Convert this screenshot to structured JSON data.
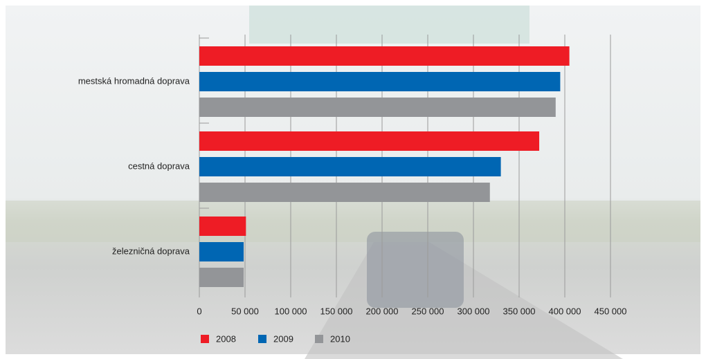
{
  "chart_data": {
    "type": "hbar",
    "categories": [
      "mestská hromadná doprava",
      "cestná doprava",
      "železničná doprava"
    ],
    "series": [
      {
        "name": "2008",
        "color": "#ee1c25",
        "values": [
          405000,
          372000,
          51000
        ]
      },
      {
        "name": "2009",
        "color": "#0066b3",
        "values": [
          395000,
          330000,
          48500
        ]
      },
      {
        "name": "2010",
        "color": "#939598",
        "values": [
          390000,
          318000,
          48500
        ]
      }
    ],
    "xlim": [
      0,
      450000
    ],
    "xticks": [
      0,
      {
        "value": 50000,
        "label": "50 000"
      },
      {
        "value": 100000,
        "label": "100 000"
      },
      {
        "value": 150000,
        "label": "150 000"
      },
      {
        "value": 200000,
        "label": "200 000"
      },
      {
        "value": 250000,
        "label": "250 000"
      },
      {
        "value": 300000,
        "label": "300 000"
      },
      {
        "value": 350000,
        "label": "350 000"
      },
      {
        "value": 400000,
        "label": "400 000"
      },
      {
        "value": 450000,
        "label": "450 000"
      }
    ],
    "grid": true,
    "legend": "bottom-left"
  }
}
